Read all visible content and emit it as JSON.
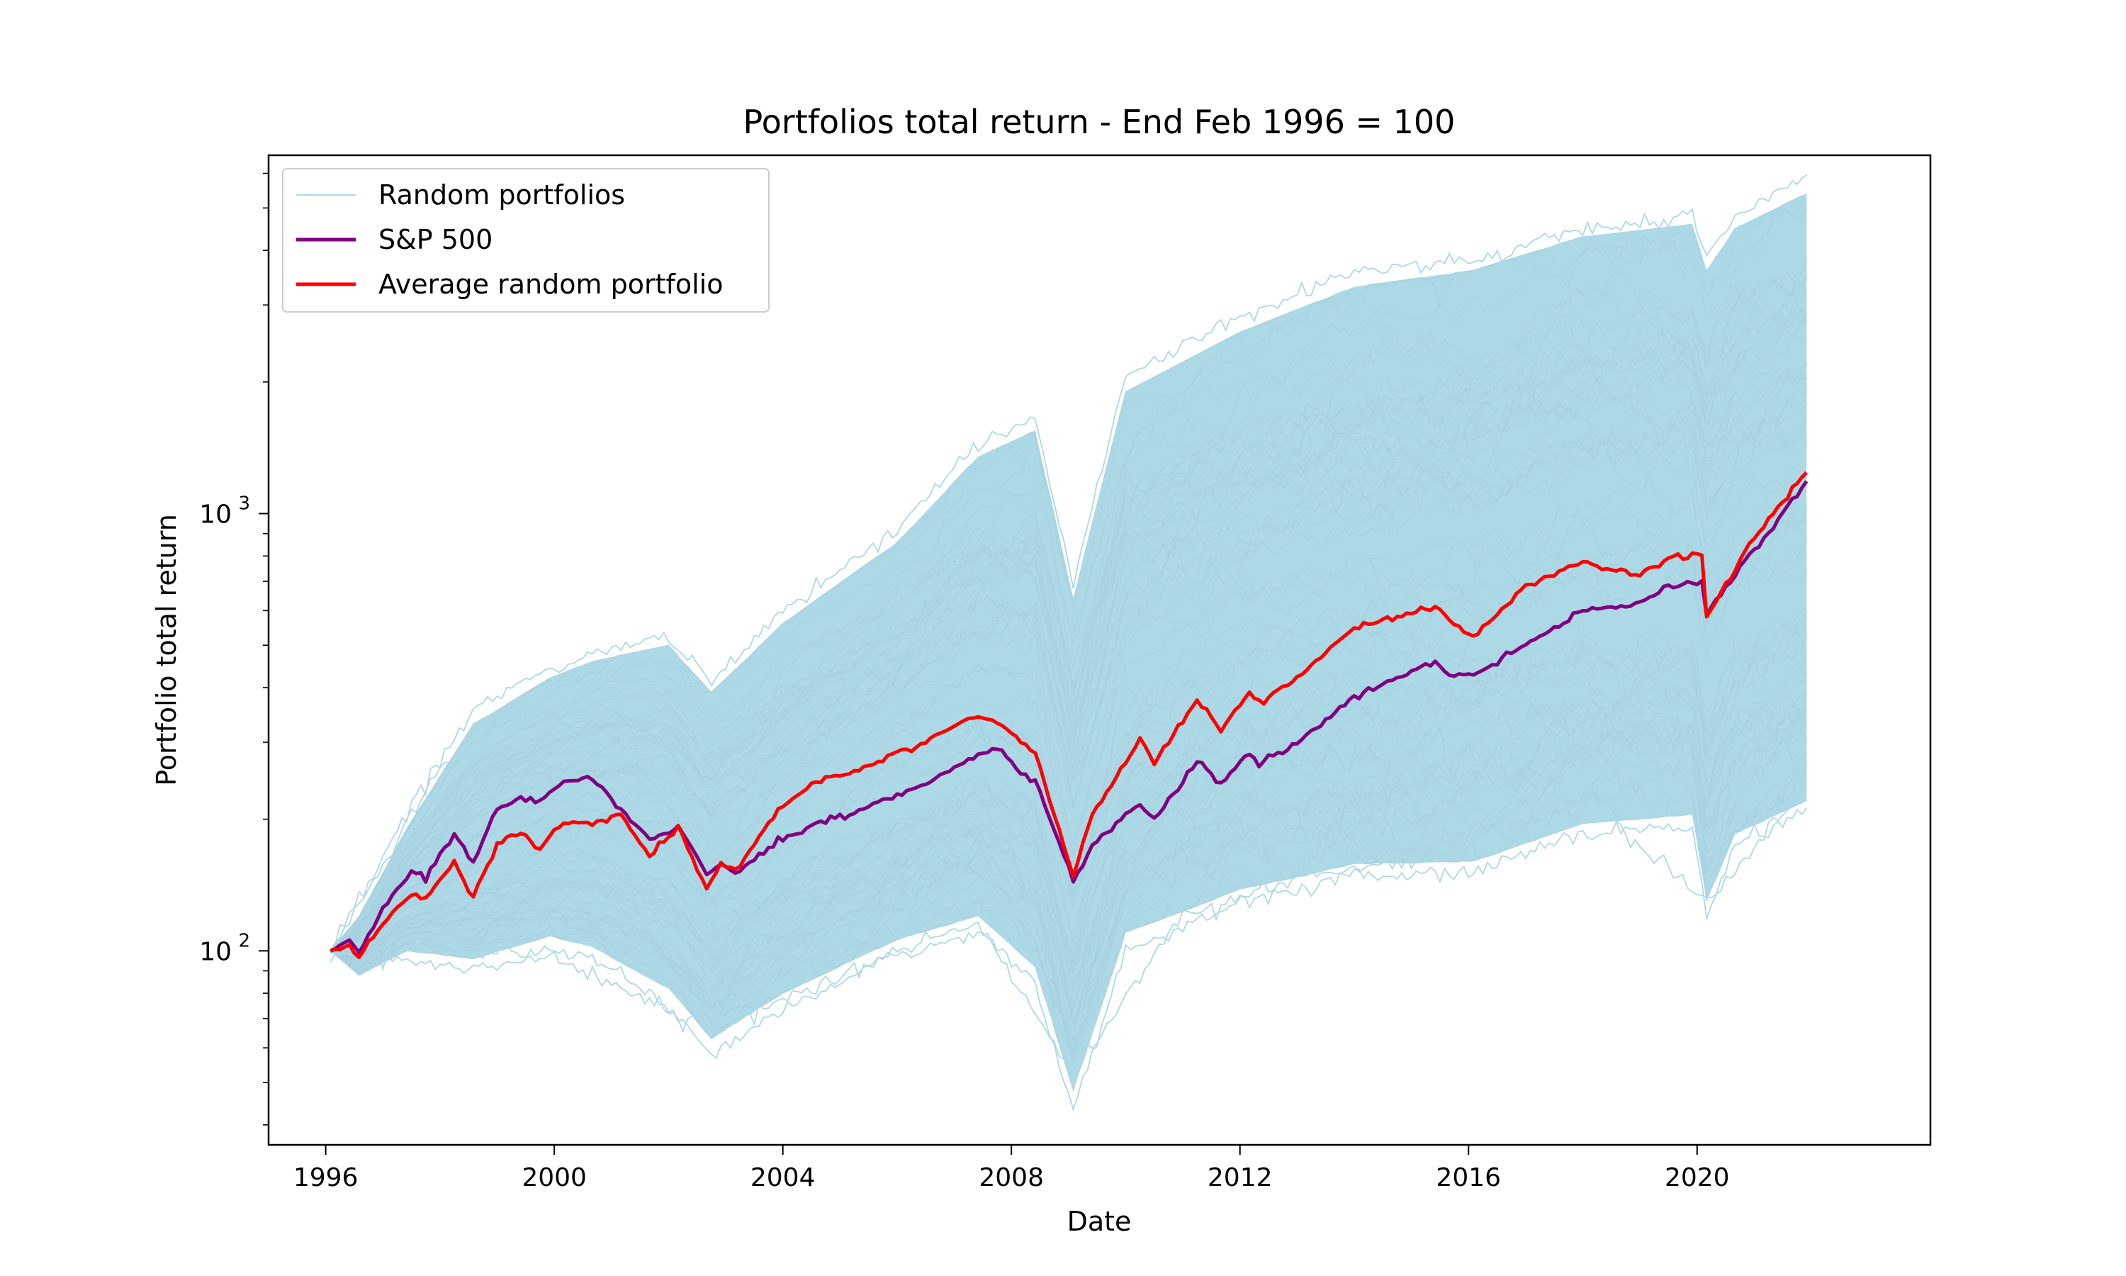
{
  "chart_data": {
    "type": "line",
    "title": "Portfolios total return - End Feb 1996 = 100",
    "xlabel": "Date",
    "ylabel": "Portfolio total return",
    "y_scale": "log",
    "xlim": [
      "1995-01-01",
      "2024-02-01"
    ],
    "ylim": [
      36,
      6600
    ],
    "x_ticks": [
      {
        "value": "1996-01-01",
        "label": "1996"
      },
      {
        "value": "2000-01-01",
        "label": "2000"
      },
      {
        "value": "2004-01-01",
        "label": "2004"
      },
      {
        "value": "2008-01-01",
        "label": "2008"
      },
      {
        "value": "2012-01-01",
        "label": "2012"
      },
      {
        "value": "2016-01-01",
        "label": "2016"
      },
      {
        "value": "2020-01-01",
        "label": "2020"
      }
    ],
    "y_ticks": [
      {
        "value": 100,
        "base": "10",
        "exp": "2"
      },
      {
        "value": 1000,
        "base": "10",
        "exp": "3"
      }
    ],
    "grid": false,
    "legend_position": "top-left",
    "legend": [
      {
        "name": "Random portfolios",
        "color": "#add8e6"
      },
      {
        "name": "S&P 500",
        "color": "#800080"
      },
      {
        "name": "Average random portfolio",
        "color": "#ff0000"
      }
    ],
    "random_band": {
      "name": "Random portfolios",
      "color": "#add8e6",
      "x": [
        "1996-02-01",
        "1996-08-01",
        "1997-06-01",
        "1998-08-01",
        "1999-12-01",
        "2000-09-01",
        "2002-01-01",
        "2002-10-01",
        "2004-01-01",
        "2006-01-01",
        "2007-06-01",
        "2008-06-01",
        "2009-02-01",
        "2010-01-01",
        "2012-01-01",
        "2014-01-01",
        "2016-02-01",
        "2018-01-01",
        "2019-12-01",
        "2020-03-01",
        "2020-09-01",
        "2021-12-01"
      ],
      "upper": [
        100,
        120,
        190,
        330,
        420,
        460,
        500,
        390,
        560,
        860,
        1350,
        1550,
        640,
        1900,
        2600,
        3300,
        3600,
        4300,
        4600,
        3600,
        4500,
        5400
      ],
      "lower": [
        100,
        88,
        100,
        96,
        108,
        102,
        82,
        63,
        80,
        106,
        120,
        92,
        48,
        110,
        138,
        158,
        160,
        195,
        205,
        130,
        185,
        220
      ]
    },
    "outer_paths": [
      {
        "x": [
          "1996-02-01",
          "1997-06-01",
          "1998-08-01",
          "1999-12-01",
          "2000-09-01",
          "2002-01-01",
          "2002-10-01",
          "2004-01-01",
          "2006-01-01",
          "2007-06-01",
          "2008-06-01",
          "2009-02-01",
          "2010-01-01",
          "2012-01-01",
          "2014-01-01",
          "2016-02-01",
          "2018-01-01",
          "2019-12-01",
          "2020-03-01",
          "2020-09-01",
          "2021-12-01"
        ],
        "y": [
          100,
          205,
          360,
          440,
          480,
          530,
          410,
          600,
          920,
          1450,
          1650,
          700,
          2050,
          2800,
          3600,
          3800,
          4500,
          4800,
          3800,
          4800,
          6000
        ]
      },
      {
        "x": [
          "1996-02-01",
          "1997-06-01",
          "1998-08-01",
          "1999-12-01",
          "2000-09-01",
          "2002-01-01",
          "2002-10-01",
          "2004-01-01",
          "2006-01-01",
          "2007-06-01",
          "2008-06-01",
          "2009-02-01",
          "2010-01-01",
          "2012-01-01",
          "2014-01-01",
          "2016-02-01",
          "2018-01-01",
          "2019-12-01",
          "2020-03-01",
          "2020-09-01",
          "2021-12-01"
        ],
        "y": [
          100,
          95,
          90,
          100,
          96,
          75,
          58,
          74,
          98,
          110,
          85,
          42,
          100,
          128,
          150,
          152,
          185,
          195,
          120,
          175,
          210
        ]
      },
      {
        "x": [
          "1996-02-01",
          "1998-01-01",
          "2000-01-01",
          "2002-10-01",
          "2005-01-01",
          "2007-06-01",
          "2008-06-01",
          "2009-02-01",
          "2011-01-01",
          "2013-06-01",
          "2016-02-01",
          "2018-06-01",
          "2020-03-01",
          "2021-12-01"
        ],
        "y": [
          100,
          260,
          380,
          330,
          520,
          1000,
          1200,
          430,
          1400,
          1900,
          2300,
          3000,
          2000,
          4700
        ]
      },
      {
        "x": [
          "1996-02-01",
          "1998-01-01",
          "2000-01-01",
          "2002-10-01",
          "2005-01-01",
          "2007-06-01",
          "2009-02-01",
          "2011-01-01",
          "2013-06-01",
          "2016-02-01",
          "2018-06-01",
          "2020-03-01",
          "2021-12-01"
        ],
        "y": [
          100,
          104,
          96,
          66,
          88,
          118,
          52,
          122,
          150,
          172,
          205,
          128,
          240
        ]
      }
    ],
    "series": [
      {
        "name": "S&P 500",
        "color": "#800080",
        "x": [
          "1996-02-01",
          "1996-06-01",
          "1996-08-01",
          "1997-01-01",
          "1997-07-01",
          "1997-10-01",
          "1998-04-01",
          "1998-08-01",
          "1999-01-01",
          "1999-06-01",
          "1999-10-01",
          "2000-03-01",
          "2000-09-01",
          "2001-03-01",
          "2001-09-01",
          "2002-03-01",
          "2002-09-01",
          "2002-12-01",
          "2003-03-01",
          "2003-12-01",
          "2004-08-01",
          "2005-04-01",
          "2006-01-01",
          "2006-07-01",
          "2007-05-01",
          "2007-10-01",
          "2008-03-01",
          "2008-06-01",
          "2008-10-01",
          "2009-02-01",
          "2009-06-01",
          "2010-04-01",
          "2010-07-01",
          "2011-04-01",
          "2011-09-01",
          "2012-03-01",
          "2012-05-01",
          "2013-01-01",
          "2014-01-01",
          "2015-06-01",
          "2015-09-01",
          "2016-02-01",
          "2017-01-01",
          "2018-01-01",
          "2018-12-01",
          "2019-07-01",
          "2020-02-01",
          "2020-03-01",
          "2020-12-01",
          "2021-12-01"
        ],
        "y": [
          100,
          105,
          99,
          125,
          152,
          148,
          185,
          160,
          210,
          225,
          218,
          245,
          250,
          210,
          180,
          192,
          150,
          158,
          150,
          178,
          195,
          208,
          228,
          240,
          278,
          292,
          255,
          245,
          190,
          143,
          175,
          218,
          200,
          272,
          240,
          285,
          268,
          300,
          380,
          460,
          425,
          430,
          500,
          600,
          615,
          680,
          700,
          590,
          800,
          1180
        ]
      },
      {
        "name": "Average random portfolio",
        "color": "#ff0000",
        "x": [
          "1996-02-01",
          "1996-06-01",
          "1996-08-01",
          "1997-01-01",
          "1997-07-01",
          "1997-10-01",
          "1998-04-01",
          "1998-08-01",
          "1999-01-01",
          "1999-06-01",
          "1999-10-01",
          "2000-03-01",
          "2000-09-01",
          "2001-03-01",
          "2001-09-01",
          "2002-03-01",
          "2002-09-01",
          "2002-12-01",
          "2003-03-01",
          "2003-12-01",
          "2004-08-01",
          "2005-04-01",
          "2006-01-01",
          "2006-07-01",
          "2007-05-01",
          "2007-10-01",
          "2008-03-01",
          "2008-06-01",
          "2008-10-01",
          "2009-02-01",
          "2009-06-01",
          "2010-04-01",
          "2010-07-01",
          "2011-04-01",
          "2011-09-01",
          "2012-03-01",
          "2012-05-01",
          "2013-01-01",
          "2014-01-01",
          "2015-06-01",
          "2015-09-01",
          "2016-02-01",
          "2017-01-01",
          "2018-01-01",
          "2018-12-01",
          "2019-07-01",
          "2020-02-01",
          "2020-03-01",
          "2020-12-01",
          "2021-12-01"
        ],
        "y": [
          100,
          103,
          97,
          115,
          135,
          132,
          160,
          132,
          175,
          185,
          172,
          198,
          195,
          205,
          165,
          192,
          138,
          158,
          152,
          210,
          245,
          255,
          285,
          300,
          345,
          335,
          300,
          285,
          205,
          148,
          205,
          305,
          270,
          375,
          320,
          390,
          370,
          420,
          550,
          610,
          570,
          525,
          680,
          780,
          720,
          790,
          800,
          580,
          850,
          1250
        ]
      }
    ]
  }
}
